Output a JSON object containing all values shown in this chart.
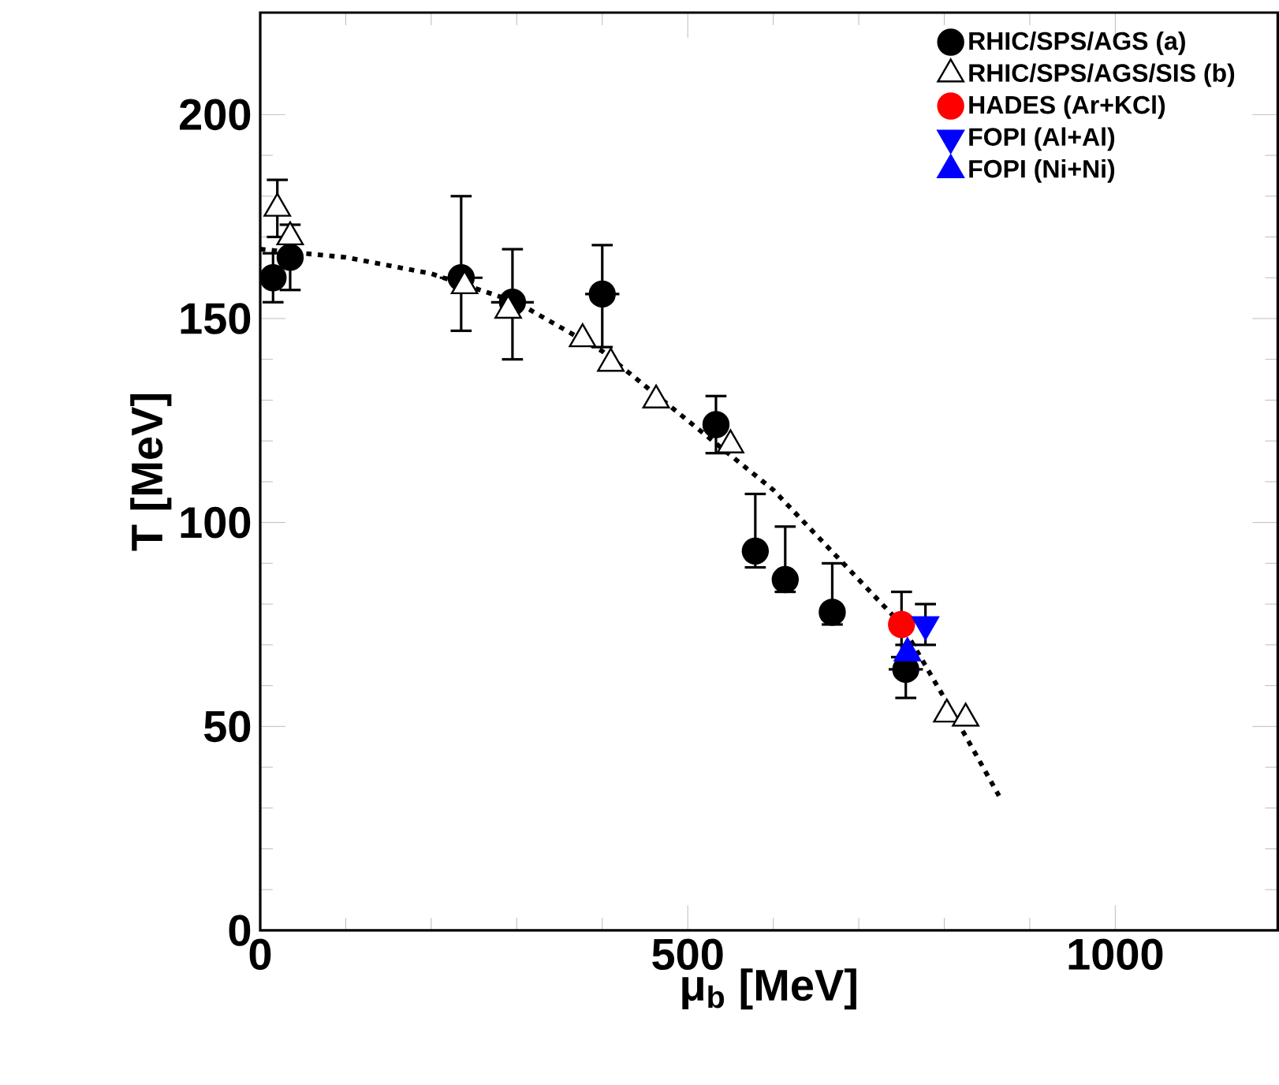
{
  "chart_data": {
    "type": "scatter",
    "xlabel": "μ$_{b}$ [MeV]",
    "ylabel": "T [MeV]",
    "xlim": [
      0,
      1190
    ],
    "ylim": [
      0,
      225
    ],
    "xticks": [
      0,
      500,
      1000
    ],
    "yticks": [
      0,
      50,
      100,
      150,
      200
    ],
    "grid": false,
    "legend": "top right",
    "series": [
      {
        "name": "RHIC/SPS/AGS (a)",
        "color": "#000000",
        "marker": "circle",
        "x": [
          15,
          35,
          235,
          295,
          400,
          533,
          579,
          614,
          669,
          755
        ],
        "values": [
          160,
          165,
          160,
          154,
          156,
          124,
          93,
          86,
          78,
          64
        ],
        "errors": [
          6,
          8,
          [
            147,
            180
          ],
          [
            140,
            167
          ],
          [
            143,
            168
          ],
          [
            117,
            131
          ],
          [
            89,
            107
          ],
          [
            83,
            99
          ],
          [
            75,
            90
          ],
          [
            57,
            70
          ]
        ],
        "xerrors": [
          null,
          null,
          25,
          25,
          20,
          null,
          null,
          15,
          12,
          20
        ]
      },
      {
        "name": "RHIC/SPS/AGS/SIS (b)",
        "color": "#ffffff",
        "marker": "triangle",
        "x": [
          20,
          35,
          239,
          290,
          377,
          410,
          463,
          550,
          803,
          825
        ],
        "values": [
          177,
          170,
          158,
          152,
          145,
          139,
          130,
          119,
          53,
          52
        ],
        "errors": [
          7,
          null,
          null,
          null,
          null,
          null,
          null,
          null,
          null,
          null
        ]
      },
      {
        "name": "HADES (Ar+KCl)",
        "color": "#ff0000",
        "marker": "circle",
        "x": [
          750
        ],
        "values": [
          75
        ],
        "errors": [
          8
        ]
      },
      {
        "name": "FOPI (Al+Al)",
        "color": "#0000ff",
        "marker": "triangle-down",
        "x": [
          778
        ],
        "values": [
          75
        ],
        "errors": [
          5
        ]
      },
      {
        "name": "FOPI (Ni+Ni)",
        "color": "#0000ff",
        "marker": "triangle",
        "x": [
          757
        ],
        "values": [
          68
        ]
      },
      {
        "type": "line",
        "color": "#000000",
        "marker": "none",
        "line_style": "dotted",
        "x": [
          0,
          100,
          200,
          300,
          400,
          500,
          600,
          700,
          750,
          800,
          864
        ],
        "values": [
          167,
          165,
          161,
          154,
          142,
          125,
          108,
          86,
          75,
          57,
          33
        ]
      }
    ]
  }
}
